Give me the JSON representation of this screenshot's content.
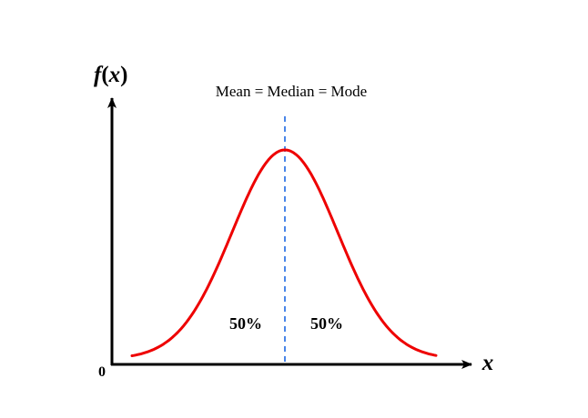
{
  "diagram": {
    "y_axis_label": "f(x)",
    "y_axis_label_f": "f",
    "y_axis_label_open": "(",
    "y_axis_label_x": "x",
    "y_axis_label_close": ")",
    "x_axis_label": "x",
    "origin_label": "0",
    "center_label": "Mean = Median = Mode",
    "left_area_label": "50%",
    "right_area_label": "50%",
    "colors": {
      "curve": "#ee0000",
      "center_line": "#4a86e8",
      "axes": "#000000",
      "background": "#ffffff"
    }
  }
}
